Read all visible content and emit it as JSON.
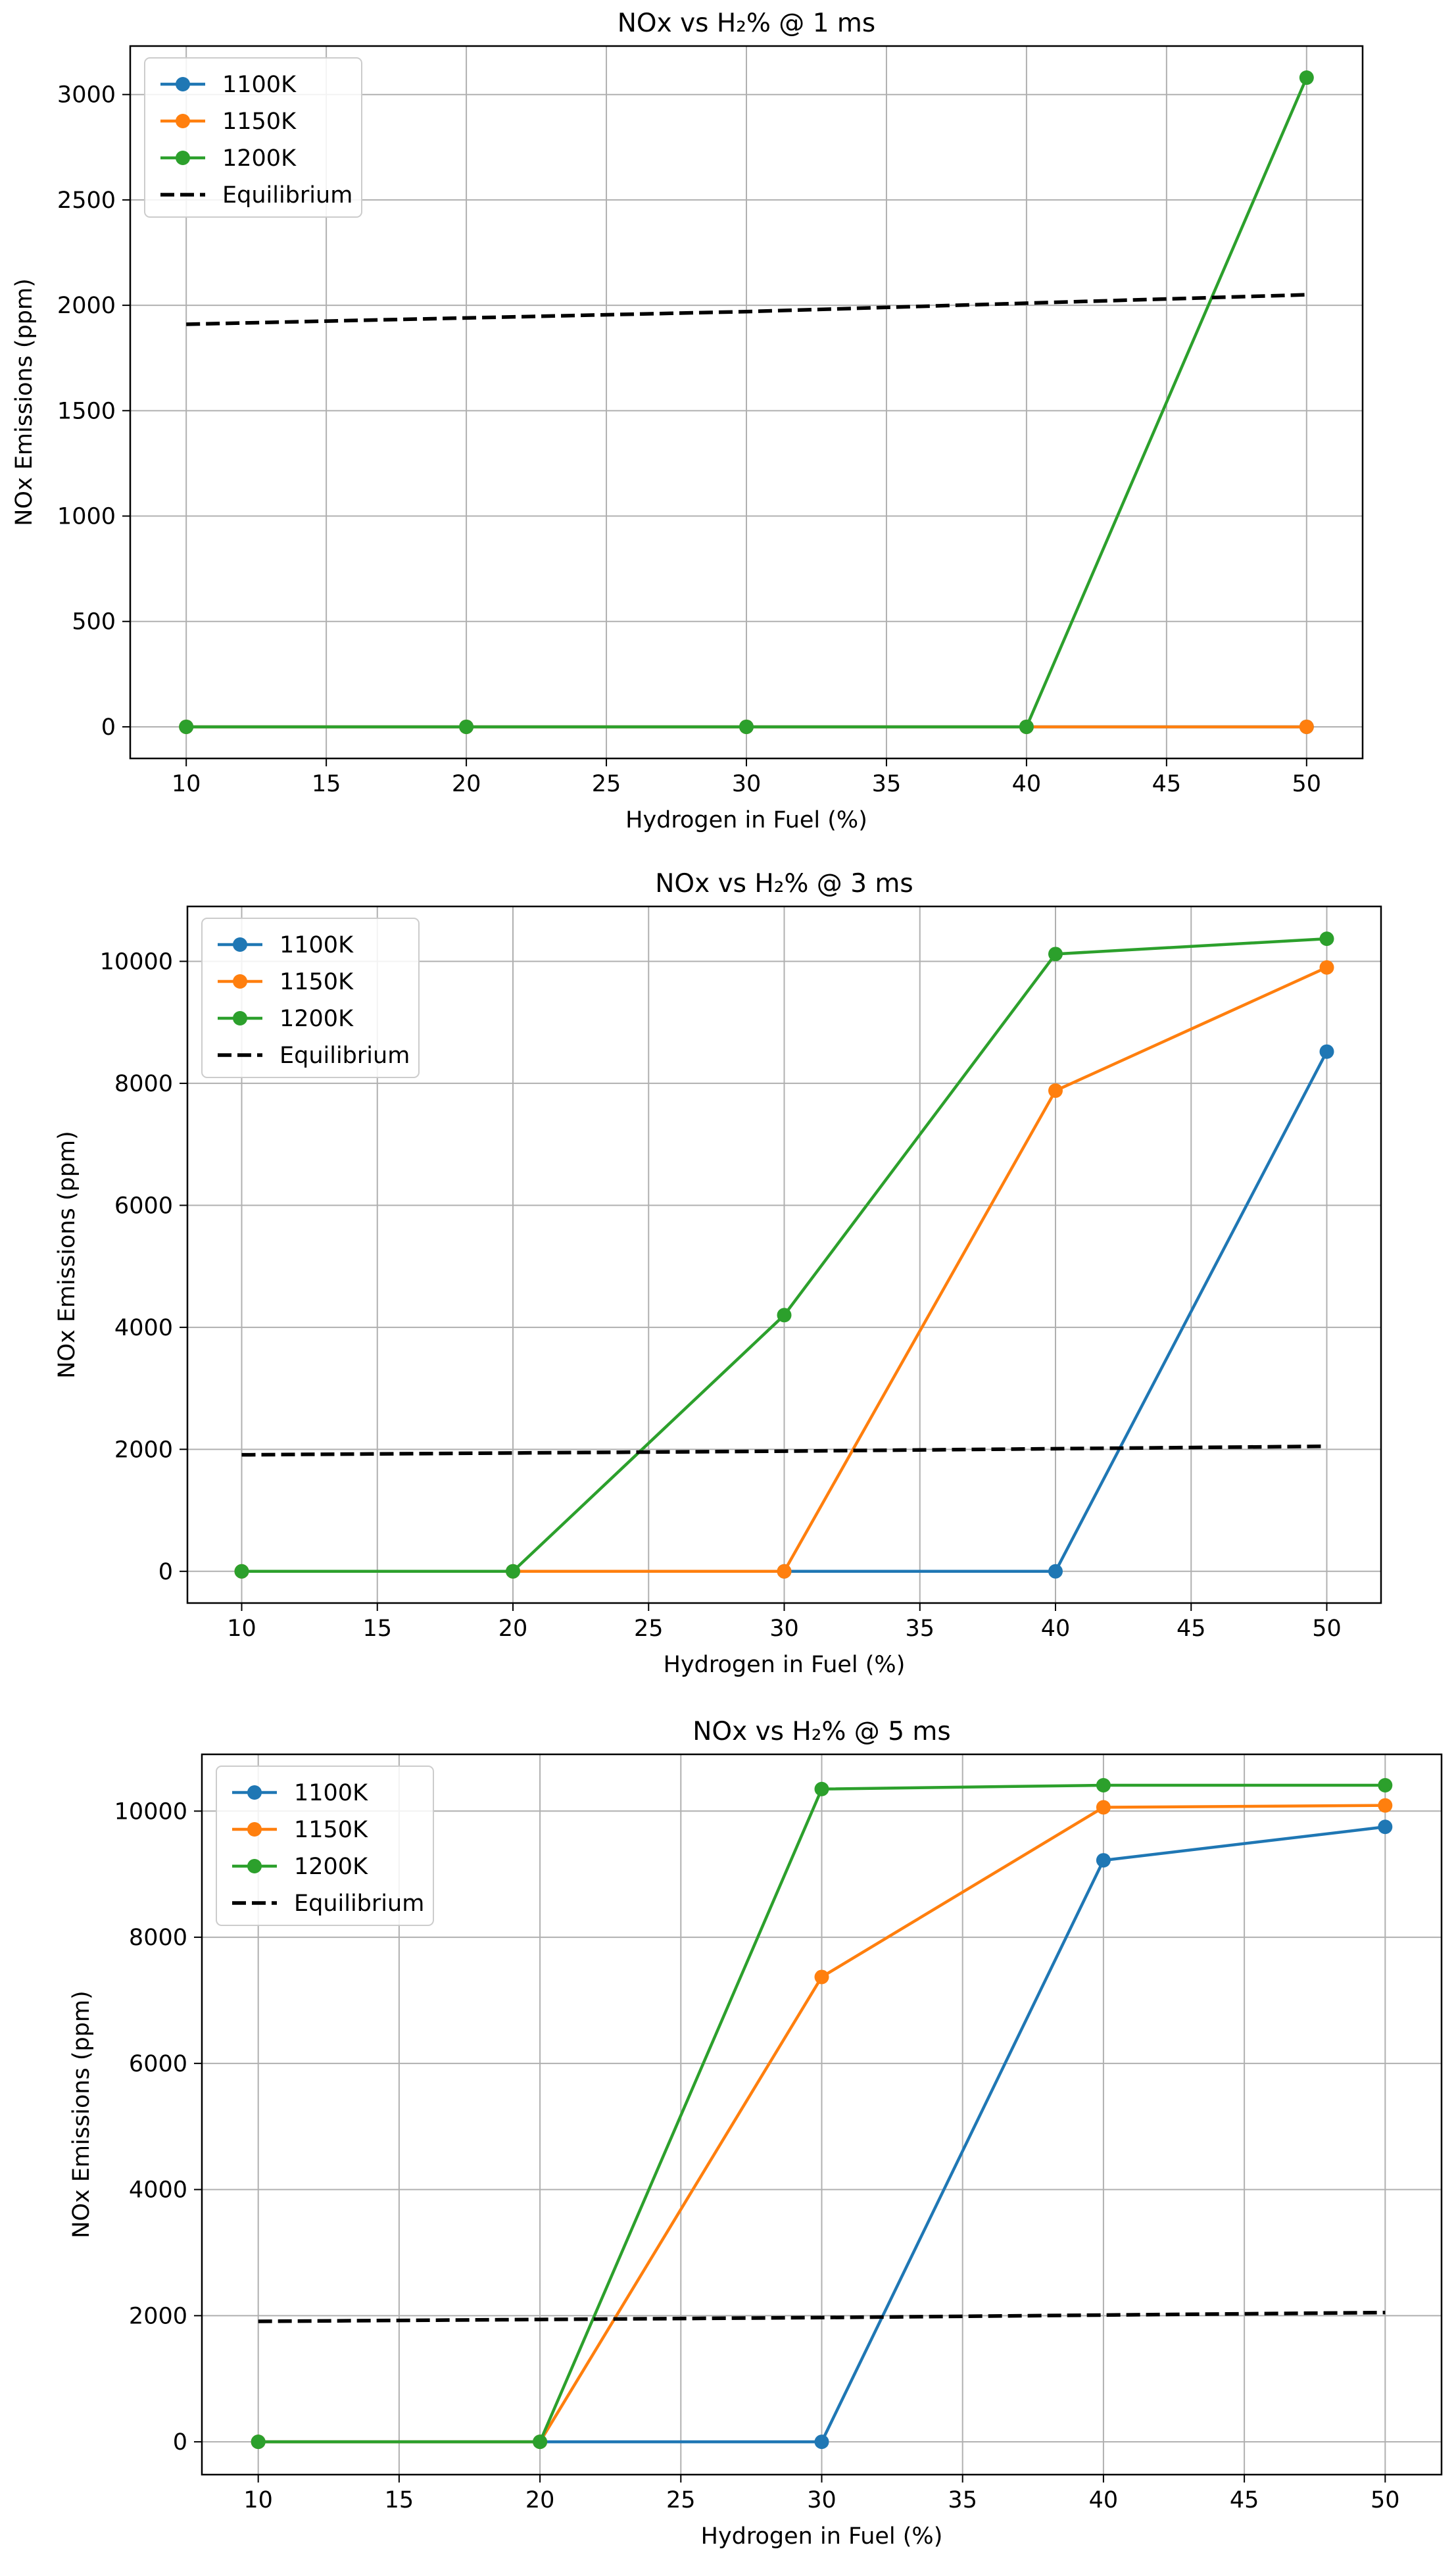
{
  "chart_data": [
    {
      "type": "line",
      "title": "NOx vs H₂% @ 1 ms",
      "xlabel": "Hydrogen in Fuel (%)",
      "ylabel": "NOx Emissions (ppm)",
      "x": [
        10,
        20,
        30,
        40,
        50
      ],
      "xlim": [
        8,
        52
      ],
      "ylim": [
        -150,
        3230
      ],
      "xticks": [
        10,
        15,
        20,
        25,
        30,
        35,
        40,
        45,
        50
      ],
      "yticks": [
        0,
        500,
        1000,
        1500,
        2000,
        2500,
        3000
      ],
      "grid": true,
      "legend_position": "upper-left",
      "series": [
        {
          "name": "1100K",
          "color": "#1f77b4",
          "values": [
            0,
            0,
            0,
            0,
            0
          ]
        },
        {
          "name": "1150K",
          "color": "#ff7f0e",
          "values": [
            0,
            0,
            0,
            0,
            0
          ]
        },
        {
          "name": "1200K",
          "color": "#2ca02c",
          "values": [
            0,
            0,
            0,
            0,
            3080
          ]
        },
        {
          "name": "Equilibrium",
          "color": "#000000",
          "dashed": true,
          "values": [
            1910,
            1940,
            1970,
            2010,
            2050
          ]
        }
      ]
    },
    {
      "type": "line",
      "title": "NOx vs H₂% @ 3 ms",
      "xlabel": "Hydrogen in Fuel (%)",
      "ylabel": "NOx Emissions (ppm)",
      "x": [
        10,
        20,
        30,
        40,
        50
      ],
      "xlim": [
        8,
        52
      ],
      "ylim": [
        -520,
        10900
      ],
      "xticks": [
        10,
        15,
        20,
        25,
        30,
        35,
        40,
        45,
        50
      ],
      "yticks": [
        0,
        2000,
        4000,
        6000,
        8000,
        10000
      ],
      "grid": true,
      "legend_position": "upper-left",
      "series": [
        {
          "name": "1100K",
          "color": "#1f77b4",
          "values": [
            0,
            0,
            0,
            0,
            8520
          ]
        },
        {
          "name": "1150K",
          "color": "#ff7f0e",
          "values": [
            0,
            0,
            0,
            7880,
            9900
          ]
        },
        {
          "name": "1200K",
          "color": "#2ca02c",
          "values": [
            0,
            0,
            4200,
            10120,
            10370
          ]
        },
        {
          "name": "Equilibrium",
          "color": "#000000",
          "dashed": true,
          "values": [
            1910,
            1940,
            1970,
            2010,
            2050
          ]
        }
      ]
    },
    {
      "type": "line",
      "title": "NOx vs H₂% @ 5 ms",
      "xlabel": "Hydrogen in Fuel (%)",
      "ylabel": "NOx Emissions (ppm)",
      "x": [
        10,
        20,
        30,
        40,
        50
      ],
      "xlim": [
        8,
        52
      ],
      "ylim": [
        -520,
        10900
      ],
      "xticks": [
        10,
        15,
        20,
        25,
        30,
        35,
        40,
        45,
        50
      ],
      "yticks": [
        0,
        2000,
        4000,
        6000,
        8000,
        10000
      ],
      "grid": true,
      "legend_position": "upper-left",
      "series": [
        {
          "name": "1100K",
          "color": "#1f77b4",
          "values": [
            0,
            0,
            0,
            9220,
            9750
          ]
        },
        {
          "name": "1150K",
          "color": "#ff7f0e",
          "values": [
            0,
            0,
            7370,
            10060,
            10090
          ]
        },
        {
          "name": "1200K",
          "color": "#2ca02c",
          "values": [
            0,
            0,
            10350,
            10410,
            10410
          ]
        },
        {
          "name": "Equilibrium",
          "color": "#000000",
          "dashed": true,
          "values": [
            1910,
            1940,
            1970,
            2010,
            2050
          ]
        }
      ]
    }
  ]
}
